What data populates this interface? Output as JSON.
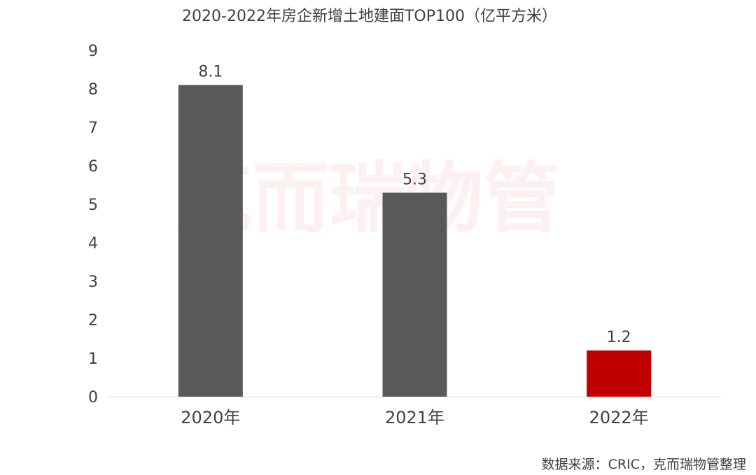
{
  "chart_data": {
    "type": "bar",
    "title": "2020-2022年房企新增土地建面TOP100（亿平方米）",
    "categories": [
      "2020年",
      "2021年",
      "2022年"
    ],
    "values": [
      8.1,
      5.3,
      1.2
    ],
    "value_labels": [
      "8.1",
      "5.3",
      "1.2"
    ],
    "bar_colors": [
      "#595959",
      "#595959",
      "#c00000"
    ],
    "ylim": [
      0,
      9
    ],
    "yticks": [
      "0",
      "1",
      "2",
      "3",
      "4",
      "5",
      "6",
      "7",
      "8",
      "9"
    ],
    "grid": false,
    "legend": "none",
    "xlabel": "",
    "ylabel": ""
  },
  "watermark": "克而瑞物管",
  "source": "数据来源：CRIC，克而瑞物管整理"
}
